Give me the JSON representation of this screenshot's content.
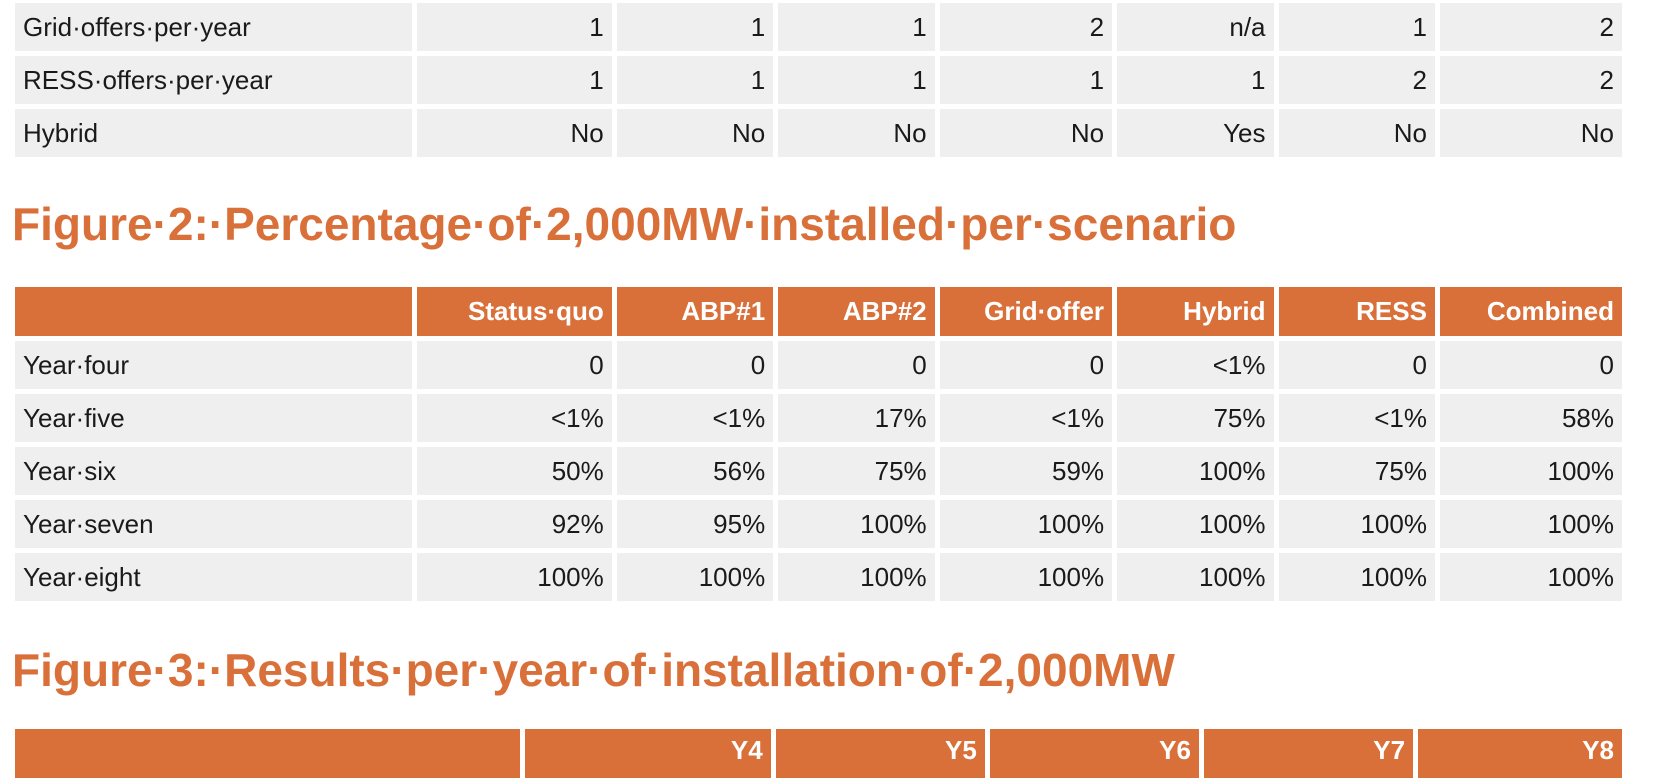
{
  "top_table": {
    "rows": [
      {
        "label": "Grid·offers·per·year",
        "values": [
          "1",
          "1",
          "1",
          "2",
          "n/a",
          "1",
          "2"
        ]
      },
      {
        "label": "RESS·offers·per·year",
        "values": [
          "1",
          "1",
          "1",
          "1",
          "1",
          "2",
          "2"
        ]
      },
      {
        "label": "Hybrid",
        "values": [
          "No",
          "No",
          "No",
          "No",
          "Yes",
          "No",
          "No"
        ]
      }
    ]
  },
  "figure2": {
    "title": "Figure·2:·Percentage·of·2,000MW·installed·per·scenario",
    "headers": [
      "",
      "Status·quo",
      "ABP#1",
      "ABP#2",
      "Grid·offer",
      "Hybrid",
      "RESS",
      "Combined"
    ],
    "rows": [
      {
        "label": "Year·four",
        "values": [
          "0",
          "0",
          "0",
          "0",
          "<1%",
          "0",
          "0"
        ]
      },
      {
        "label": "Year·five",
        "values": [
          "<1%",
          "<1%",
          "17%",
          "<1%",
          "75%",
          "<1%",
          "58%"
        ]
      },
      {
        "label": "Year·six",
        "values": [
          "50%",
          "56%",
          "75%",
          "59%",
          "100%",
          "75%",
          "100%"
        ]
      },
      {
        "label": "Year·seven",
        "values": [
          "92%",
          "95%",
          "100%",
          "100%",
          "100%",
          "100%",
          "100%"
        ]
      },
      {
        "label": "Year·eight",
        "values": [
          "100%",
          "100%",
          "100%",
          "100%",
          "100%",
          "100%",
          "100%"
        ]
      }
    ]
  },
  "figure3": {
    "title": "Figure·3:·Results·per·year·of·installation·of·2,000MW",
    "headers": [
      "",
      "Y4",
      "Y5",
      "Y6",
      "Y7",
      "Y8"
    ]
  },
  "colors": {
    "accent": "#d9703a",
    "cell_background": "#efefef",
    "text": "#1a1a1a"
  }
}
